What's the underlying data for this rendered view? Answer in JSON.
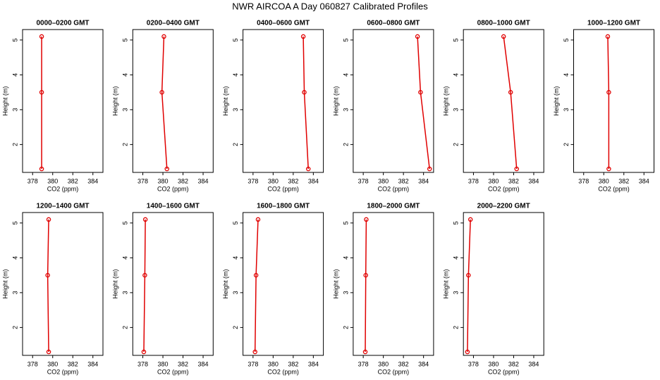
{
  "title": "NWR AIRCOA A  Day 060827  Calibrated Profiles",
  "chart_data": [
    {
      "type": "line",
      "title": "0000–0200 GMT",
      "x_label": "CO2 (ppm)",
      "y_label": "Height (m)",
      "x": [
        378.9,
        378.9,
        378.9
      ],
      "values": [
        1.3,
        3.5,
        5.1
      ],
      "color": "#e00000",
      "xlim": [
        377,
        385
      ],
      "xticks": [
        378,
        380,
        382,
        384
      ],
      "ylim": [
        1.2,
        5.3
      ],
      "yticks": [
        2,
        3,
        4,
        5
      ]
    },
    {
      "type": "line",
      "title": "0200–0400 GMT",
      "x_label": "CO2 (ppm)",
      "y_label": "Height (m)",
      "x": [
        380.4,
        379.9,
        380.1
      ],
      "values": [
        1.3,
        3.5,
        5.1
      ],
      "color": "#e00000",
      "xlim": [
        377,
        385
      ],
      "xticks": [
        378,
        380,
        382,
        384
      ],
      "ylim": [
        1.2,
        5.3
      ],
      "yticks": [
        2,
        3,
        4,
        5
      ]
    },
    {
      "type": "line",
      "title": "0400–0600 GMT",
      "x_label": "CO2 (ppm)",
      "y_label": "Height (m)",
      "x": [
        383.5,
        383.1,
        383.0
      ],
      "values": [
        1.3,
        3.5,
        5.1
      ],
      "color": "#e00000",
      "xlim": [
        377,
        385
      ],
      "xticks": [
        378,
        380,
        382,
        384
      ],
      "ylim": [
        1.2,
        5.3
      ],
      "yticks": [
        2,
        3,
        4,
        5
      ]
    },
    {
      "type": "line",
      "title": "0600–0800 GMT",
      "x_label": "CO2 (ppm)",
      "y_label": "Height (m)",
      "x": [
        384.6,
        383.7,
        383.4
      ],
      "values": [
        1.3,
        3.5,
        5.1
      ],
      "color": "#e00000",
      "xlim": [
        377,
        385
      ],
      "xticks": [
        378,
        380,
        382,
        384
      ],
      "ylim": [
        1.2,
        5.3
      ],
      "yticks": [
        2,
        3,
        4,
        5
      ]
    },
    {
      "type": "line",
      "title": "0800–1000 GMT",
      "x_label": "CO2 (ppm)",
      "y_label": "Height (m)",
      "x": [
        382.3,
        381.7,
        381.0
      ],
      "values": [
        1.3,
        3.5,
        5.1
      ],
      "color": "#e00000",
      "xlim": [
        377,
        385
      ],
      "xticks": [
        378,
        380,
        382,
        384
      ],
      "ylim": [
        1.2,
        5.3
      ],
      "yticks": [
        2,
        3,
        4,
        5
      ]
    },
    {
      "type": "line",
      "title": "1000–1200 GMT",
      "x_label": "CO2 (ppm)",
      "y_label": "Height (m)",
      "x": [
        380.5,
        380.5,
        380.4
      ],
      "values": [
        1.3,
        3.5,
        5.1
      ],
      "color": "#e00000",
      "xlim": [
        377,
        385
      ],
      "xticks": [
        378,
        380,
        382,
        384
      ],
      "ylim": [
        1.2,
        5.3
      ],
      "yticks": [
        2,
        3,
        4,
        5
      ]
    },
    {
      "type": "line",
      "title": "1200–1400 GMT",
      "x_label": "CO2 (ppm)",
      "y_label": "Height (m)",
      "x": [
        379.6,
        379.5,
        379.6
      ],
      "values": [
        1.3,
        3.5,
        5.1
      ],
      "color": "#e00000",
      "xlim": [
        377,
        385
      ],
      "xticks": [
        378,
        380,
        382,
        384
      ],
      "ylim": [
        1.2,
        5.3
      ],
      "yticks": [
        2,
        3,
        4,
        5
      ]
    },
    {
      "type": "line",
      "title": "1400–1600 GMT",
      "x_label": "CO2 (ppm)",
      "y_label": "Height (m)",
      "x": [
        378.1,
        378.2,
        378.25
      ],
      "values": [
        1.3,
        3.5,
        5.1
      ],
      "color": "#e00000",
      "xlim": [
        377,
        385
      ],
      "xticks": [
        378,
        380,
        382,
        384
      ],
      "ylim": [
        1.2,
        5.3
      ],
      "yticks": [
        2,
        3,
        4,
        5
      ]
    },
    {
      "type": "line",
      "title": "1600–1800 GMT",
      "x_label": "CO2 (ppm)",
      "y_label": "Height (m)",
      "x": [
        378.2,
        378.3,
        378.5
      ],
      "values": [
        1.3,
        3.5,
        5.1
      ],
      "color": "#e00000",
      "xlim": [
        377,
        385
      ],
      "xticks": [
        378,
        380,
        382,
        384
      ],
      "ylim": [
        1.2,
        5.3
      ],
      "yticks": [
        2,
        3,
        4,
        5
      ]
    },
    {
      "type": "line",
      "title": "1800–2000 GMT",
      "x_label": "CO2 (ppm)",
      "y_label": "Height (m)",
      "x": [
        378.2,
        378.25,
        378.3
      ],
      "values": [
        1.3,
        3.5,
        5.1
      ],
      "color": "#e00000",
      "xlim": [
        377,
        385
      ],
      "xticks": [
        378,
        380,
        382,
        384
      ],
      "ylim": [
        1.2,
        5.3
      ],
      "yticks": [
        2,
        3,
        4,
        5
      ]
    },
    {
      "type": "line",
      "title": "2000–2200 GMT",
      "x_label": "CO2 (ppm)",
      "y_label": "Height (m)",
      "x": [
        377.4,
        377.5,
        377.7
      ],
      "values": [
        1.3,
        3.5,
        5.1
      ],
      "color": "#e00000",
      "xlim": [
        377,
        385
      ],
      "xticks": [
        378,
        380,
        382,
        384
      ],
      "ylim": [
        1.2,
        5.3
      ],
      "yticks": [
        2,
        3,
        4,
        5
      ]
    }
  ]
}
